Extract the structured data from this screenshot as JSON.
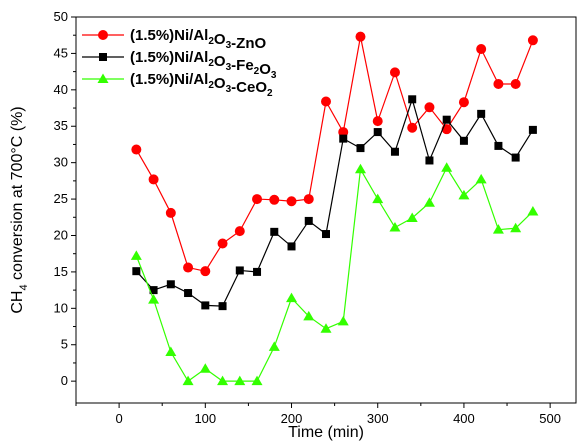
{
  "chart_data": {
    "type": "line",
    "xlabel": "Time (min)",
    "ylabel_main": "CH",
    "ylabel_sub": "4",
    "ylabel_rest": " conversion at 700°C (%)",
    "xlim": [
      -50,
      530
    ],
    "ylim": [
      -3,
      50
    ],
    "xticks": [
      0,
      100,
      200,
      300,
      400,
      500
    ],
    "yticks": [
      0,
      5,
      10,
      15,
      20,
      25,
      30,
      35,
      40,
      45,
      50
    ],
    "x": [
      20,
      40,
      60,
      80,
      100,
      120,
      140,
      160,
      180,
      200,
      220,
      240,
      260,
      280,
      300,
      320,
      340,
      360,
      380,
      400,
      420,
      440,
      460,
      480
    ],
    "legend_position": "top-left",
    "series": [
      {
        "name_parts": [
          {
            "t": "(1.5%)Ni/Al"
          },
          {
            "t": "2",
            "sub": true
          },
          {
            "t": "O"
          },
          {
            "t": "3",
            "sub": true
          },
          {
            "t": "-ZnO"
          }
        ],
        "color": "#ff0000",
        "marker": "circle",
        "values": [
          31.8,
          27.7,
          23.1,
          15.6,
          15.1,
          18.9,
          20.6,
          25.0,
          24.9,
          24.7,
          25.0,
          38.4,
          34.2,
          47.3,
          35.7,
          42.4,
          34.8,
          37.6,
          34.6,
          38.3,
          45.6,
          40.8,
          40.8,
          46.8
        ]
      },
      {
        "name_parts": [
          {
            "t": "(1.5%)Ni/Al"
          },
          {
            "t": "2",
            "sub": true
          },
          {
            "t": "O"
          },
          {
            "t": "3",
            "sub": true
          },
          {
            "t": "-Fe"
          },
          {
            "t": "2",
            "sub": true
          },
          {
            "t": "O"
          },
          {
            "t": "3",
            "sub": true
          }
        ],
        "color": "#000000",
        "marker": "square",
        "values": [
          15.1,
          12.5,
          13.3,
          12.1,
          10.4,
          10.3,
          15.2,
          15.0,
          20.5,
          18.5,
          22.0,
          20.2,
          33.3,
          32.0,
          34.2,
          31.5,
          38.7,
          30.3,
          35.9,
          33.0,
          36.7,
          32.3,
          30.7,
          34.5
        ]
      },
      {
        "name_parts": [
          {
            "t": "(1.5%)Ni/Al"
          },
          {
            "t": "2",
            "sub": true
          },
          {
            "t": "O"
          },
          {
            "t": "3",
            "sub": true
          },
          {
            "t": "-CeO"
          },
          {
            "t": "2",
            "sub": true
          }
        ],
        "color": "#33ff00",
        "marker": "triangle",
        "values": [
          17.2,
          11.2,
          4.0,
          0.0,
          1.7,
          0.0,
          0.0,
          0.0,
          4.7,
          11.4,
          8.9,
          7.2,
          8.2,
          29.1,
          25.0,
          21.1,
          22.4,
          24.5,
          29.3,
          25.5,
          27.7,
          20.8,
          21.0,
          23.3
        ]
      }
    ]
  }
}
